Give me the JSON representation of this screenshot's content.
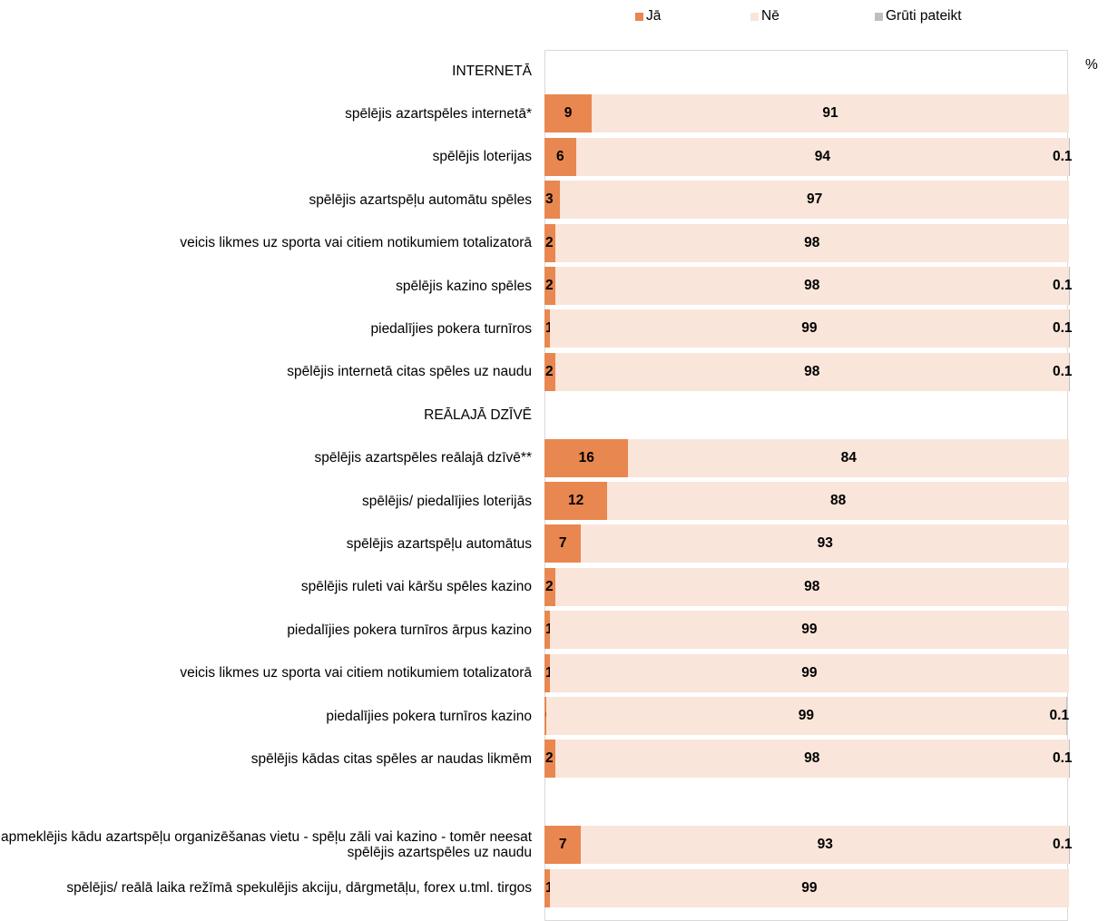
{
  "chart_data": {
    "type": "stacked_bar_horizontal",
    "value_axis_label": "%",
    "xlim": [
      0,
      100
    ],
    "categories": [
      "INTERNETĀ",
      "spēlējis azartspēles internetā*",
      "spēlējis loterijas",
      "spēlējis azartspēļu automātu spēles",
      "veicis likmes uz sporta vai citiem notikumiem totalizatorā",
      "spēlējis kazino spēles",
      "piedalījies pokera turnīros",
      "spēlējis internetā citas spēles uz naudu",
      "REĀLAJĀ DZĪVĒ",
      "spēlējis azartspēles reālajā dzīvē**",
      "spēlējis/ piedalījies loterijās",
      "spēlējis azartspēļu automātus",
      "spēlējis ruleti vai kāršu spēles kazino",
      "piedalījies pokera turnīros ārpus kazino",
      "veicis likmes uz sporta vai citiem notikumiem totalizatorā",
      "piedalījies pokera turnīros kazino",
      "spēlējis kādas citas spēles ar naudas likmēm",
      null,
      "apmeklējis kādu azartspēļu organizēšanas vietu - spēļu zāli vai kazino - tomēr neesat spēlējis azartspēles uz naudu",
      "spēlējis/ reālā laika režīmā spekulējis akciju, dārgmetāļu, forex u.tml. tirgos"
    ],
    "series": [
      {
        "name": "Jā",
        "color": "#e8874f",
        "values": [
          null,
          9,
          6,
          3,
          2,
          2,
          1,
          2,
          null,
          16,
          12,
          7,
          2,
          1,
          1,
          0.4,
          2,
          null,
          7,
          1
        ]
      },
      {
        "name": "Nē",
        "color": "#f9e5da",
        "values": [
          null,
          91,
          94,
          97,
          98,
          98,
          99,
          98,
          null,
          84,
          88,
          93,
          98,
          99,
          99,
          99,
          98,
          null,
          93,
          99
        ]
      },
      {
        "name": "Grūti pateikt",
        "color": "#bfbfbf",
        "values": [
          null,
          null,
          0.1,
          null,
          null,
          0.1,
          0.1,
          0.1,
          null,
          null,
          null,
          null,
          null,
          null,
          null,
          0.1,
          0.1,
          null,
          0.1,
          null
        ]
      }
    ]
  }
}
